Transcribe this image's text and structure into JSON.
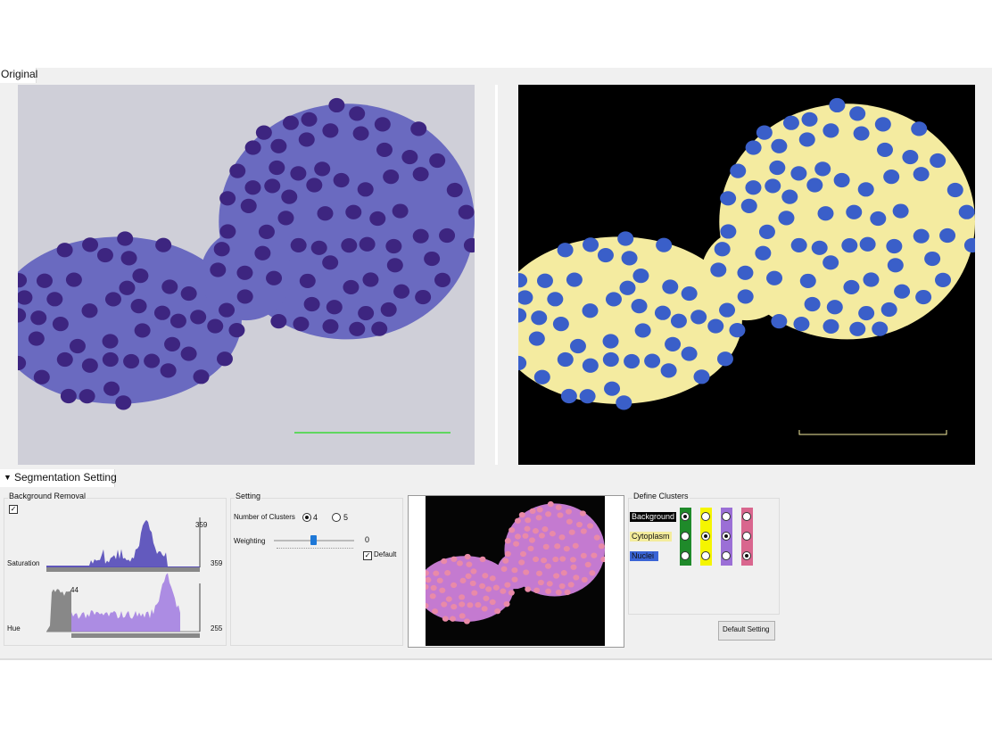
{
  "tabs": {
    "original": "Original",
    "segmentation": "Segmentation Setting"
  },
  "background_removal": {
    "title": "Background Removal",
    "saturation": {
      "label": "Saturation",
      "peak": 359,
      "max": 359
    },
    "hue": {
      "label": "Hue",
      "marker": 44,
      "max": 255
    }
  },
  "setting": {
    "title": "Setting",
    "clusters_label": "Number of Clusters",
    "options": [
      4,
      5
    ],
    "weighting_label": "Weighting",
    "weighting_value": 0,
    "default_label": "Default"
  },
  "define_clusters": {
    "title": "Define Clusters",
    "rows": [
      "Background",
      "Cytoplasm",
      "Nuclei"
    ]
  },
  "button": "Default Setting"
}
